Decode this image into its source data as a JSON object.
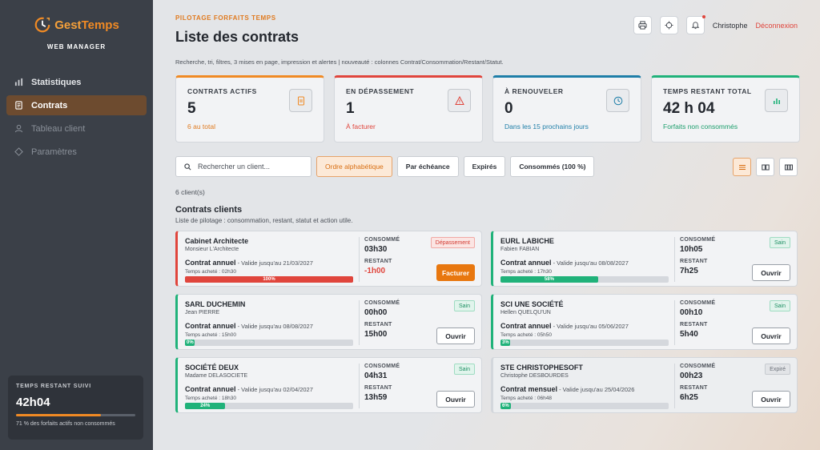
{
  "brand": {
    "name_part1": "Gest",
    "name_part2": "Temps",
    "subtitle": "WEB MANAGER"
  },
  "sidebar": {
    "items": [
      {
        "label": "Statistiques",
        "icon": "chart-icon",
        "state": "normal"
      },
      {
        "label": "Contrats",
        "icon": "document-icon",
        "state": "active"
      },
      {
        "label": "Tableau client",
        "icon": "user-icon",
        "state": "disabled"
      },
      {
        "label": "Paramètres",
        "icon": "diamond-icon",
        "state": "disabled"
      }
    ],
    "summary": {
      "label": "TEMPS RESTANT SUIVI",
      "value": "42h04",
      "fill": 0.71,
      "note": "71 % des forfaits actifs non consommés"
    }
  },
  "header": {
    "eyebrow": "PILOTAGE FORFAITS TEMPS",
    "title": "Liste des contrats",
    "description": "Recherche, tri, filtres, 3 mises en page, impression et alertes | nouveauté : colonnes Contrat/Consommation/Restant/Statut.",
    "user": "Christophe",
    "logout": "Déconnexion"
  },
  "kpis": [
    {
      "label": "CONTRATS ACTIFS",
      "value": "5",
      "sub": "6 au total",
      "color": "#f08a24",
      "sub_color": "#e07a1f",
      "icon": "document-icon"
    },
    {
      "label": "EN DÉPASSEMENT",
      "value": "1",
      "sub": "À facturer",
      "color": "#e0453c",
      "sub_color": "#e0453c",
      "icon": "warning-icon"
    },
    {
      "label": "À RENOUVELER",
      "value": "0",
      "sub": "Dans les 15 prochains jours",
      "color": "#1e7ea8",
      "sub_color": "#1e7ea8",
      "icon": "clock-icon"
    },
    {
      "label": "TEMPS RESTANT TOTAL",
      "value": "42 h 04",
      "sub": "Forfaits non consommés",
      "color": "#20b27a",
      "sub_color": "#1c9e6c",
      "icon": "bars-icon"
    }
  ],
  "filters": {
    "search_placeholder": "Rechercher un client...",
    "chips": [
      {
        "label": "Ordre alphabétique",
        "active": true
      },
      {
        "label": "Par échéance",
        "active": false
      },
      {
        "label": "Expirés",
        "active": false
      },
      {
        "label": "Consommés (100 %)",
        "active": false
      }
    ]
  },
  "list": {
    "count": "6 client(s)",
    "title": "Contrats clients",
    "description": "Liste de pilotage : consommation, restant, statut et action utile.",
    "consumed_label": "CONSOMMÉ",
    "remaining_label": "RESTANT"
  },
  "contracts": [
    {
      "name": "Cabinet Architecte",
      "contact": "Monsieur L'Architecte",
      "type": "Contrat annuel",
      "validity": " - Valide jusqu'au 21/03/2027",
      "bought": "Temps acheté : 02h30",
      "progress": 1.0,
      "progress_label": "100%",
      "consumed": "03h30",
      "remaining": "-1h00",
      "status": "Dépassement",
      "status_kind": "danger",
      "action": "Facturer",
      "action_kind": "primary"
    },
    {
      "name": "EURL LABICHE",
      "contact": "Fabien FABIAN",
      "type": "Contrat annuel",
      "validity": " - Valide jusqu'au 08/08/2027",
      "bought": "Temps acheté : 17h30",
      "progress": 0.58,
      "progress_label": "58%",
      "consumed": "10h05",
      "remaining": "7h25",
      "status": "Sain",
      "status_kind": "ok",
      "action": "Ouvrir",
      "action_kind": "default"
    },
    {
      "name": "SARL DUCHEMIN",
      "contact": "Jean PIERRE",
      "type": "Contrat annuel",
      "validity": " - Valide jusqu'au 08/08/2027",
      "bought": "Temps acheté : 15h00",
      "progress": 0.0,
      "progress_label": "0%",
      "consumed": "00h00",
      "remaining": "15h00",
      "status": "Sain",
      "status_kind": "ok",
      "action": "Ouvrir",
      "action_kind": "default"
    },
    {
      "name": "SCI UNE SOCIÉTÉ",
      "contact": "Hellen QUELQU'UN",
      "type": "Contrat annuel",
      "validity": " - Valide jusqu'au 05/06/2027",
      "bought": "Temps acheté : 05h50",
      "progress": 0.03,
      "progress_label": "3%",
      "consumed": "00h10",
      "remaining": "5h40",
      "status": "Sain",
      "status_kind": "ok",
      "action": "Ouvrir",
      "action_kind": "default"
    },
    {
      "name": "SOCIÉTÉ DEUX",
      "contact": "Madame DELASOCIETE",
      "type": "Contrat annuel",
      "validity": " - Valide jusqu'au 02/04/2027",
      "bought": "Temps acheté : 18h30",
      "progress": 0.24,
      "progress_label": "24%",
      "consumed": "04h31",
      "remaining": "13h59",
      "status": "Sain",
      "status_kind": "ok",
      "action": "Ouvrir",
      "action_kind": "default"
    },
    {
      "name": "STE CHRISTOPHESOFT",
      "contact": "Christophe DESBOURDES",
      "type": "Contrat mensuel",
      "validity": " - Valide jusqu'au 25/04/2026",
      "bought": "Temps acheté : 06h48",
      "progress": 0.06,
      "progress_label": "6%",
      "consumed": "00h23",
      "remaining": "6h25",
      "status": "Expiré",
      "status_kind": "expired",
      "action": "Ouvrir",
      "action_kind": "default"
    }
  ]
}
